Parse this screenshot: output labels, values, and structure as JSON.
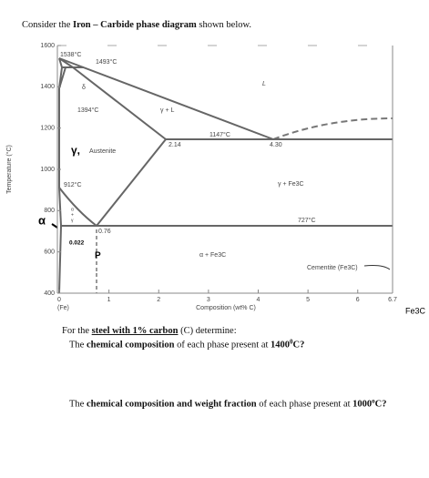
{
  "intro": [
    "Consider the ",
    "Iron – Carbide phase diagram",
    " shown below."
  ],
  "diagram": {
    "y_label": "Temperature (°C)",
    "x_label": "Composition (wt% C)",
    "xlim": [
      0,
      6.7
    ],
    "xticks": [
      0,
      1,
      2,
      3,
      4,
      5,
      6,
      6.7
    ],
    "ylim": [
      400,
      1600
    ],
    "yticks": [
      400,
      600,
      800,
      1000,
      1200,
      1400,
      1600
    ],
    "x_end_labels": [
      "(Fe)",
      "Fe3C"
    ],
    "annotations": [
      "1538°C",
      "1493°C",
      "δ",
      "1394°C",
      "γ + L",
      "L",
      "1147°C",
      "2.14",
      "4.30",
      "γ,",
      "Austenite",
      "912°C",
      "γ + Fe3C",
      "727°C",
      "α",
      "+",
      "γ",
      "0.76",
      "0.022",
      "P",
      "α + Fe3C",
      "Cementite (Fe3C)",
      "α"
    ]
  },
  "question": {
    "lead": [
      "For the ",
      "steel with 1% carbon",
      " (C) determine:"
    ],
    "q1": [
      "The ",
      "chemical composition",
      " of each phase present at ",
      "1400",
      "0",
      "C?"
    ],
    "q2": [
      "The ",
      "chemical composition and weight fraction",
      " of each phase present at ",
      "1000",
      "o",
      "C?"
    ]
  }
}
